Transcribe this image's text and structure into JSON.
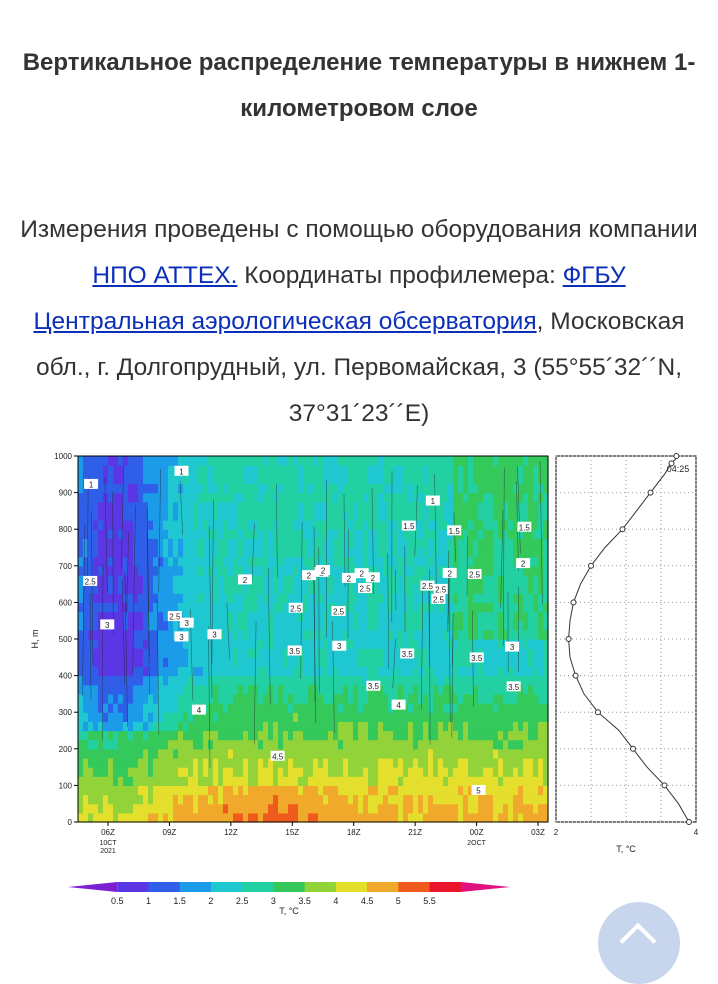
{
  "title": "Вертикальное распределение температуры в нижнем 1-километровом слое",
  "intro": {
    "text1": "Измерения проведены с помощью оборудования компании ",
    "link1": "НПО АТТЕХ.",
    "text2": "  Координаты профилемера: ",
    "link2": "ФГБУ Центральная аэрологическая обсерватория",
    "text3": ", Московская обл., г. Долгопрудный, ул. Первомайская, 3 (55°55´32´´N, 37°31´23´´E)"
  },
  "scroll_top": {
    "icon": "arrow-up-icon"
  },
  "chart_data": [
    {
      "type": "heatmap",
      "ylabel": "H, m",
      "xlabel": "",
      "ylim": [
        0,
        1000
      ],
      "y_ticks": [
        "0",
        "100",
        "200",
        "300",
        "400",
        "500",
        "600",
        "700",
        "800",
        "900",
        "1000"
      ],
      "x_ticks": [
        "06Z",
        "09Z",
        "12Z",
        "15Z",
        "18Z",
        "21Z",
        "00Z",
        "03Z"
      ],
      "x_date_labels": [
        {
          "at": "06Z",
          "lines": [
            "10CT",
            "2021"
          ]
        },
        {
          "at": "00Z",
          "lines": [
            "2OCT"
          ]
        }
      ],
      "contour_labels": [
        "1",
        "1",
        "1",
        "1.5",
        "1.5",
        "1.5",
        "2",
        "2",
        "2",
        "2",
        "2",
        "2",
        "2",
        "2",
        "2.5",
        "2.5",
        "2.5",
        "2.5",
        "2.5",
        "2.5",
        "2.5",
        "2.5",
        "2.5",
        "3",
        "3",
        "3",
        "3",
        "3",
        "3",
        "3.5",
        "3.5",
        "3.5",
        "3.5",
        "3.5",
        "4",
        "4",
        "4.5",
        "5",
        "2"
      ],
      "colorbar": {
        "label": "T, °C",
        "ticks": [
          "0.5",
          "1",
          "1.5",
          "2",
          "2.5",
          "3",
          "3.5",
          "4",
          "4.5",
          "5",
          "5.5"
        ],
        "colors": [
          "#7b1fd1",
          "#5a36e4",
          "#2f5ee8",
          "#1c9be8",
          "#1fc7d1",
          "#22d0a2",
          "#34c95a",
          "#93d33a",
          "#e3df2c",
          "#f0a92a",
          "#ef5b1d",
          "#e8152b",
          "#e0127d"
        ]
      }
    },
    {
      "type": "line",
      "xlabel": "T, °C",
      "ylabel": "",
      "xlim": [
        2,
        4
      ],
      "ylim": [
        0,
        1000
      ],
      "x_ticks": [
        "2",
        "4"
      ],
      "time_label": "04:25",
      "x": [
        3.9,
        3.75,
        3.55,
        3.3,
        3.1,
        2.9,
        2.6,
        2.4,
        2.28,
        2.2,
        2.18,
        2.2,
        2.25,
        2.35,
        2.5,
        2.7,
        2.95,
        3.15,
        3.35,
        3.55,
        3.65,
        3.75,
        3.72,
        3.65
      ],
      "y": [
        0,
        50,
        100,
        150,
        200,
        250,
        300,
        350,
        400,
        450,
        500,
        550,
        600,
        650,
        700,
        750,
        800,
        850,
        900,
        950,
        980,
        1000,
        1000,
        1000
      ]
    }
  ]
}
